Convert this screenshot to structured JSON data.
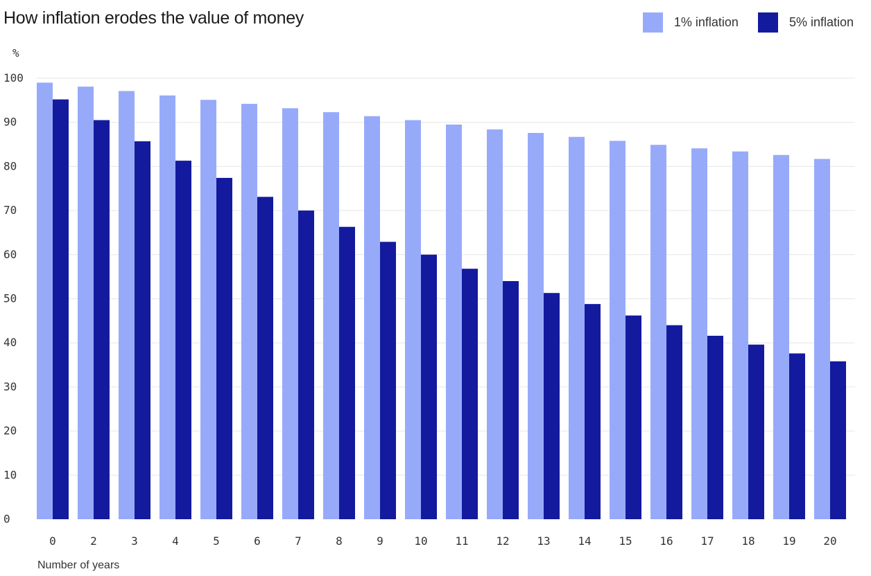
{
  "chart_data": {
    "type": "bar",
    "title": "How inflation erodes the value of money",
    "xlabel": "Number of years",
    "ylabel": "%",
    "ylim": [
      0,
      100
    ],
    "yticks": [
      0,
      10,
      20,
      30,
      40,
      50,
      60,
      70,
      80,
      90,
      100
    ],
    "grid": true,
    "legend_position": "top-right",
    "categories": [
      "0",
      "2",
      "3",
      "4",
      "5",
      "6",
      "7",
      "8",
      "9",
      "10",
      "11",
      "12",
      "13",
      "14",
      "15",
      "16",
      "17",
      "18",
      "19",
      "20"
    ],
    "series": [
      {
        "name": "1% inflation",
        "color": "#97aafa",
        "values": [
          99,
          98.1,
          97.1,
          96.1,
          95.1,
          94.2,
          93.2,
          92.3,
          91.4,
          90.5,
          89.5,
          88.4,
          87.6,
          86.7,
          85.8,
          84.9,
          84.1,
          83.4,
          82.6,
          81.7
        ]
      },
      {
        "name": "5% inflation",
        "color": "#141a9e",
        "values": [
          95.2,
          90.5,
          85.7,
          81.3,
          77.4,
          73.1,
          70,
          66.3,
          62.9,
          60,
          56.8,
          54,
          51.3,
          48.8,
          46.2,
          44,
          41.6,
          39.6,
          37.6,
          35.8
        ]
      }
    ]
  }
}
